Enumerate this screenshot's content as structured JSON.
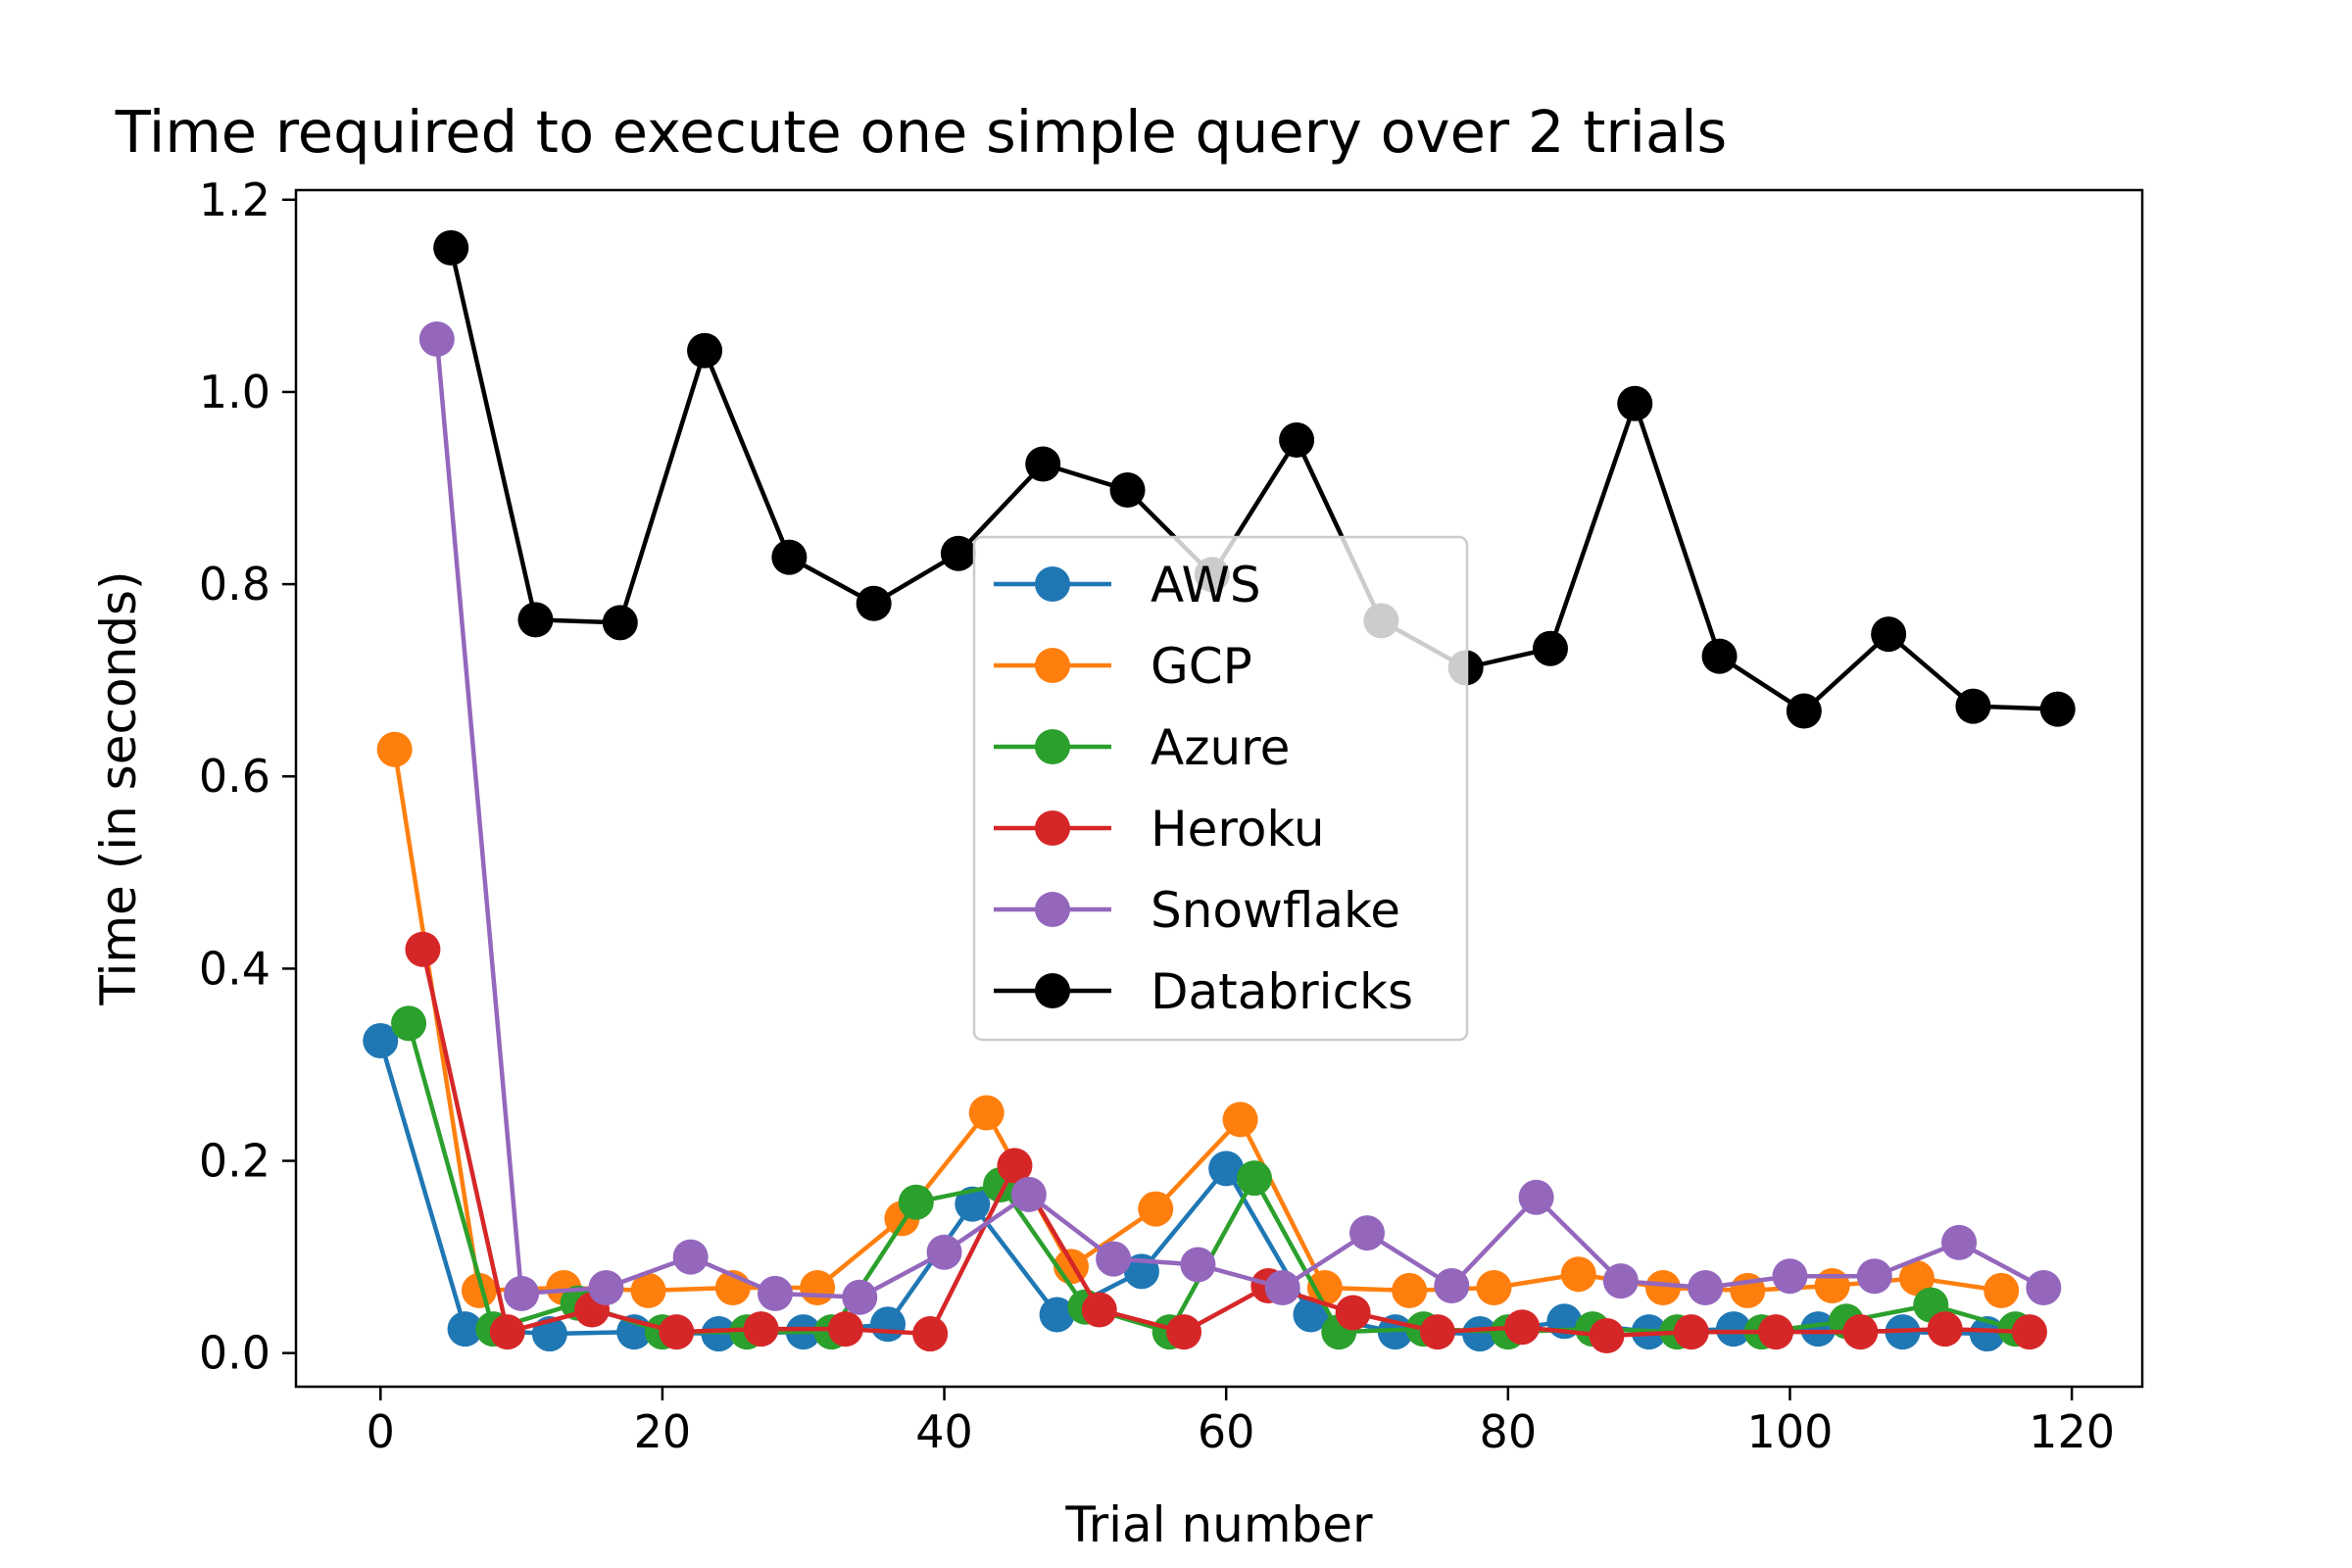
{
  "chart_data": {
    "type": "line",
    "title": "Time required to execute one simple query over 2 trials",
    "xlabel": "Trial number",
    "ylabel": "Time (in seconds)",
    "xlim": [
      -6,
      125
    ],
    "ylim": [
      -0.035,
      1.21
    ],
    "xticks": [
      0,
      20,
      40,
      60,
      80,
      100,
      120
    ],
    "xtick_labels": [
      "0",
      "20",
      "40",
      "60",
      "80",
      "100",
      "120"
    ],
    "yticks": [
      0.0,
      0.2,
      0.4,
      0.6,
      0.8,
      1.0,
      1.2
    ],
    "ytick_labels": [
      "0.0",
      "0.2",
      "0.4",
      "0.6",
      "0.8",
      "1.0",
      "1.2"
    ],
    "grid": false,
    "legend_position": "center",
    "series": [
      {
        "name": "AWS",
        "color": "#1f77b4",
        "x": [
          0,
          6,
          12,
          18,
          24,
          30,
          36,
          42,
          48,
          54,
          60,
          66,
          72,
          78,
          84,
          90,
          96,
          102,
          108,
          114
        ],
        "y": [
          0.325,
          0.025,
          0.02,
          0.022,
          0.02,
          0.022,
          0.03,
          0.155,
          0.04,
          0.085,
          0.192,
          0.04,
          0.022,
          0.02,
          0.033,
          0.022,
          0.025,
          0.025,
          0.022,
          0.02
        ]
      },
      {
        "name": "GCP",
        "color": "#ff7f0e",
        "x": [
          1,
          7,
          13,
          19,
          25,
          31,
          37,
          43,
          49,
          55,
          61,
          67,
          73,
          79,
          85,
          91,
          97,
          103,
          109,
          115
        ],
        "y": [
          0.628,
          0.065,
          0.068,
          0.065,
          0.068,
          0.068,
          0.14,
          0.25,
          0.09,
          0.15,
          0.243,
          0.068,
          0.065,
          0.068,
          0.082,
          0.068,
          0.065,
          0.07,
          0.078,
          0.065
        ]
      },
      {
        "name": "Azure",
        "color": "#2ca02c",
        "x": [
          2,
          8,
          14,
          20,
          26,
          32,
          38,
          44,
          50,
          56,
          62,
          68,
          74,
          80,
          86,
          92,
          98,
          104,
          110,
          116
        ],
        "y": [
          0.343,
          0.025,
          0.052,
          0.022,
          0.022,
          0.022,
          0.157,
          0.175,
          0.048,
          0.022,
          0.182,
          0.022,
          0.025,
          0.022,
          0.025,
          0.022,
          0.022,
          0.033,
          0.05,
          0.025
        ]
      },
      {
        "name": "Heroku",
        "color": "#d62728",
        "x": [
          3,
          9,
          15,
          21,
          27,
          33,
          39,
          45,
          51,
          57,
          63,
          69,
          75,
          81,
          87,
          93,
          99,
          105,
          111,
          117
        ],
        "y": [
          0.42,
          0.022,
          0.045,
          0.022,
          0.025,
          0.025,
          0.02,
          0.195,
          0.045,
          0.022,
          0.07,
          0.042,
          0.022,
          0.027,
          0.018,
          0.022,
          0.022,
          0.022,
          0.025,
          0.022
        ]
      },
      {
        "name": "Snowflake",
        "color": "#9467bd",
        "x": [
          4,
          10,
          16,
          22,
          28,
          34,
          40,
          46,
          52,
          58,
          64,
          70,
          76,
          82,
          88,
          94,
          100,
          106,
          112,
          118
        ],
        "y": [
          1.055,
          0.062,
          0.068,
          0.1,
          0.062,
          0.058,
          0.105,
          0.165,
          0.098,
          0.092,
          0.068,
          0.125,
          0.07,
          0.162,
          0.075,
          0.068,
          0.08,
          0.08,
          0.115,
          0.068
        ]
      },
      {
        "name": "Databricks",
        "color": "#000000",
        "x": [
          5,
          11,
          17,
          23,
          29,
          35,
          41,
          47,
          53,
          59,
          65,
          71,
          77,
          83,
          89,
          95,
          101,
          107,
          113,
          119
        ],
        "y": [
          1.15,
          0.763,
          0.76,
          1.043,
          0.828,
          0.78,
          0.832,
          0.925,
          0.898,
          0.81,
          0.95,
          0.762,
          0.713,
          0.733,
          0.988,
          0.725,
          0.668,
          0.748,
          0.673,
          0.67
        ]
      }
    ]
  }
}
